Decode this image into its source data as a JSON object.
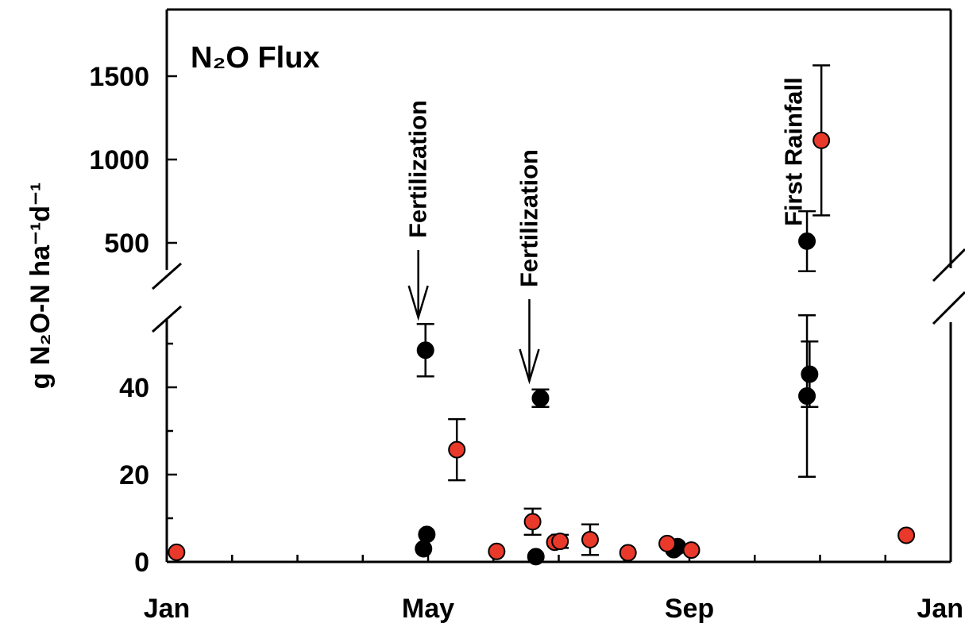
{
  "chart_data": {
    "type": "scatter",
    "title": "N₂O Flux",
    "ylabel": "g N₂O-N ha⁻¹d⁻¹",
    "xlabel": "",
    "x_ticks": [
      {
        "label": "Jan",
        "month": 0
      },
      {
        "label": "May",
        "month": 4
      },
      {
        "label": "Sep",
        "month": 8
      },
      {
        "label": "Jan",
        "month": 12
      }
    ],
    "xlim_months": [
      0,
      12
    ],
    "y_axis_broken": true,
    "ylim_lower": [
      0,
      60
    ],
    "ylim_upper": [
      300,
      1900
    ],
    "y_ticks_lower": [
      {
        "label": "0",
        "value": 0
      },
      {
        "label": "20",
        "value": 20
      },
      {
        "label": "40",
        "value": 40
      }
    ],
    "y_ticks_upper": [
      {
        "label": "500",
        "value": 500
      },
      {
        "label": "1000",
        "value": 1000
      },
      {
        "label": "1500",
        "value": 1500
      }
    ],
    "grid": false,
    "legend": "none",
    "colors": {
      "black_series": "#000000",
      "red_series": "#e8392b"
    },
    "series": [
      {
        "marker": "black",
        "points": [
          {
            "month": 3.93,
            "y": 3
          },
          {
            "month": 3.98,
            "y": 6.3
          },
          {
            "month": 3.96,
            "y": 48.5,
            "err": 6
          },
          {
            "month": 5.65,
            "y": 1.2
          },
          {
            "month": 5.72,
            "y": 37.5,
            "err": 2
          },
          {
            "month": 7.76,
            "y": 2.8
          },
          {
            "month": 7.82,
            "y": 3.5
          },
          {
            "month": 9.8,
            "y": 38,
            "err": 18.5
          },
          {
            "month": 9.84,
            "y": 43,
            "err": 7.5
          },
          {
            "month": 9.8,
            "y": 510,
            "err": 180
          }
        ]
      },
      {
        "marker": "red",
        "points": [
          {
            "month": 0.15,
            "y": 2.2
          },
          {
            "month": 4.44,
            "y": 25.7,
            "err": 7
          },
          {
            "month": 5.05,
            "y": 2.4
          },
          {
            "month": 5.6,
            "y": 9.2,
            "err": 3
          },
          {
            "month": 5.94,
            "y": 4.5
          },
          {
            "month": 6.02,
            "y": 4.7,
            "err": 1.5
          },
          {
            "month": 6.48,
            "y": 5.1,
            "err": 3.5
          },
          {
            "month": 7.06,
            "y": 2.1
          },
          {
            "month": 7.66,
            "y": 4.2
          },
          {
            "month": 8.03,
            "y": 2.7
          },
          {
            "month": 11.32,
            "y": 6.1
          },
          {
            "month": 10.02,
            "y": 1115,
            "err": 450
          }
        ]
      }
    ],
    "annotations": [
      {
        "text": "Fertilization",
        "month": 3.85,
        "arrow": true
      },
      {
        "text": "Fertilization",
        "month": 5.55,
        "arrow": true
      },
      {
        "text": "First Rainfall",
        "month": 9.6,
        "arrow": false
      }
    ]
  }
}
